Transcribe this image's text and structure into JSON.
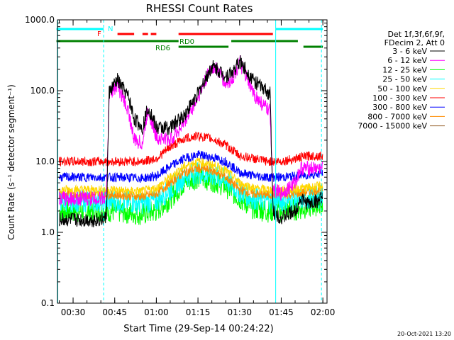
{
  "chart_data": {
    "type": "line",
    "title": "RHESSI Count Rates",
    "xlabel": "Start Time (29-Sep-14 00:24:22)",
    "ylabel": "Count Rate (s⁻¹ detector segment⁻¹)",
    "y_scale": "log",
    "ylim": [
      0.1,
      1000
    ],
    "xlim": [
      "00:24:22",
      "02:01:30"
    ],
    "x_ticks": [
      "00:30",
      "00:45",
      "01:00",
      "01:15",
      "01:30",
      "01:45",
      "02:00"
    ],
    "y_ticks": [
      "0.1",
      "1.0",
      "10.0",
      "100.0",
      "1000.0"
    ],
    "legend_position": "top-right",
    "legend_header": [
      "Det 1f,3f,6f,9f,",
      "FDecim 2, Att 0"
    ],
    "footer_date": "20-Oct-2021 13:20",
    "series": [
      {
        "name": "3 - 6 keV",
        "color": "#000000",
        "x": [
          "00:25",
          "00:40",
          "00:42",
          "00:43",
          "00:46",
          "00:50",
          "00:52",
          "00:55",
          "00:57",
          "01:00",
          "01:05",
          "01:10",
          "01:15",
          "01:20",
          "01:22",
          "01:25",
          "01:28",
          "01:30",
          "01:35",
          "01:38",
          "01:41",
          "01:42",
          "01:45",
          "01:50",
          "01:52",
          "01:55",
          "02:00"
        ],
        "values": [
          1.5,
          1.5,
          1.6,
          95,
          140,
          80,
          40,
          30,
          60,
          30,
          30,
          45,
          90,
          220,
          200,
          160,
          190,
          260,
          140,
          110,
          90,
          2.0,
          1.6,
          2.0,
          3.0,
          2.5,
          3.0
        ]
      },
      {
        "name": "6 - 12 keV",
        "color": "#ff00ff",
        "x": [
          "00:25",
          "00:40",
          "00:42",
          "00:43",
          "00:46",
          "00:50",
          "00:52",
          "00:55",
          "00:57",
          "01:00",
          "01:05",
          "01:10",
          "01:15",
          "01:20",
          "01:22",
          "01:25",
          "01:28",
          "01:30",
          "01:35",
          "01:38",
          "01:41",
          "01:42",
          "01:45",
          "01:50",
          "01:52",
          "01:55",
          "02:00"
        ],
        "values": [
          3.0,
          3.0,
          3.2,
          90,
          120,
          50,
          20,
          18,
          55,
          22,
          20,
          35,
          80,
          220,
          200,
          120,
          160,
          250,
          90,
          65,
          50,
          4.0,
          3.5,
          5.0,
          8.0,
          8.0,
          8.0
        ]
      },
      {
        "name": "12 - 25 keV",
        "color": "#00ff00",
        "x": [
          "00:25",
          "00:35",
          "00:45",
          "00:50",
          "00:55",
          "01:00",
          "01:05",
          "01:10",
          "01:15",
          "01:20",
          "01:25",
          "01:30",
          "01:35",
          "01:40",
          "01:45",
          "01:50",
          "01:55",
          "02:00"
        ],
        "values": [
          2.0,
          2.0,
          2.0,
          1.9,
          1.8,
          2.0,
          3.0,
          5.0,
          6.0,
          5.5,
          4.5,
          3.0,
          2.2,
          2.0,
          2.0,
          2.1,
          2.3,
          2.6
        ]
      },
      {
        "name": "25 - 50 keV",
        "color": "#00ffff",
        "x": [
          "00:25",
          "00:35",
          "00:45",
          "00:50",
          "00:55",
          "01:00",
          "01:05",
          "01:10",
          "01:15",
          "01:20",
          "01:25",
          "01:30",
          "01:35",
          "01:40",
          "01:45",
          "01:50",
          "01:55",
          "02:00"
        ],
        "values": [
          2.8,
          2.8,
          2.8,
          2.7,
          2.6,
          2.8,
          4.0,
          6.0,
          7.0,
          6.5,
          5.5,
          3.8,
          3.0,
          2.8,
          2.8,
          2.9,
          3.0,
          3.2
        ]
      },
      {
        "name": "50 - 100 keV",
        "color": "#ffd700",
        "x": [
          "00:25",
          "00:35",
          "00:45",
          "00:50",
          "00:55",
          "01:00",
          "01:05",
          "01:10",
          "01:15",
          "01:20",
          "01:25",
          "01:30",
          "01:35",
          "01:40",
          "01:45",
          "01:50",
          "01:55",
          "02:00"
        ],
        "values": [
          4.0,
          4.0,
          4.0,
          3.8,
          3.8,
          4.2,
          6.0,
          8.5,
          10.0,
          9.0,
          7.5,
          5.0,
          4.2,
          4.0,
          4.0,
          4.1,
          4.3,
          4.5
        ]
      },
      {
        "name": "100 - 300 keV",
        "color": "#ff0000",
        "x": [
          "00:25",
          "00:35",
          "00:45",
          "00:50",
          "00:55",
          "01:00",
          "01:05",
          "01:10",
          "01:15",
          "01:20",
          "01:25",
          "01:30",
          "01:35",
          "01:40",
          "01:45",
          "01:50",
          "01:55",
          "02:00"
        ],
        "values": [
          10,
          10,
          10,
          10,
          10,
          11,
          16,
          21,
          23,
          21,
          17,
          12,
          11,
          10,
          10,
          11,
          12,
          12
        ]
      },
      {
        "name": "300 - 800 keV",
        "color": "#0000ff",
        "x": [
          "00:25",
          "00:35",
          "00:45",
          "00:50",
          "00:55",
          "01:00",
          "01:05",
          "01:10",
          "01:15",
          "01:20",
          "01:25",
          "01:30",
          "01:35",
          "01:40",
          "01:45",
          "01:50",
          "01:55",
          "02:00"
        ],
        "values": [
          6.0,
          6.0,
          6.0,
          5.9,
          5.8,
          6.2,
          8.5,
          11.0,
          12.5,
          11.5,
          10.0,
          7.0,
          6.3,
          6.0,
          6.0,
          6.2,
          6.5,
          6.8
        ]
      },
      {
        "name": "800 - 7000 keV",
        "color": "#ff8c00",
        "x": [
          "00:25",
          "00:35",
          "00:45",
          "00:50",
          "00:55",
          "01:00",
          "01:05",
          "01:10",
          "01:15",
          "01:20",
          "01:25",
          "01:30",
          "01:35",
          "01:40",
          "01:45",
          "01:50",
          "01:55",
          "02:00"
        ],
        "values": [
          3.4,
          3.4,
          3.4,
          3.3,
          3.2,
          3.5,
          5.0,
          7.0,
          8.0,
          7.5,
          6.0,
          4.0,
          3.5,
          3.4,
          3.4,
          3.5,
          3.8,
          4.0
        ]
      },
      {
        "name": "7000 - 15000 keV",
        "color": "#996633",
        "x": [],
        "values": []
      }
    ],
    "annotations": {
      "attenuator_bars": [
        {
          "label": "F",
          "color": "#ff0000",
          "segments": [
            [
              "00:46",
              "00:52"
            ],
            [
              "00:55",
              "00:57"
            ],
            [
              "00:58",
              "01:00"
            ],
            [
              "01:08",
              "01:42"
            ]
          ]
        },
        {
          "label": "N",
          "color": "#00ffff",
          "segments": [
            [
              "00:24",
              "00:41"
            ],
            [
              "01:43",
              "02:00"
            ]
          ]
        },
        {
          "label": "RD0",
          "color": "#008000",
          "segments": [
            [
              "00:24",
              "01:08"
            ],
            [
              "01:27",
              "01:51"
            ]
          ]
        },
        {
          "label": "RD6",
          "color": "#008000",
          "segments": [
            [
              "01:08",
              "01:26"
            ],
            [
              "01:53",
              "02:00"
            ]
          ]
        }
      ],
      "vertical_lines": [
        {
          "time": "00:24:30",
          "style": "solid",
          "color": "#00ffff"
        },
        {
          "time": "00:41:00",
          "style": "dashed",
          "color": "#00ffff"
        },
        {
          "time": "01:43:00",
          "style": "solid",
          "color": "#00ffff"
        },
        {
          "time": "01:59:30",
          "style": "dashed",
          "color": "#00ffff"
        }
      ]
    }
  }
}
